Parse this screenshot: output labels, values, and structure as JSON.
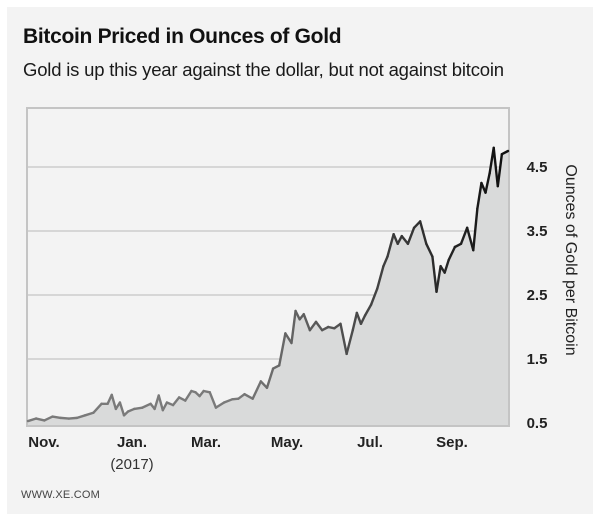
{
  "header": {
    "title": "Bitcoin Priced in Ounces of Gold",
    "subtitle": "Gold is up this year against the dollar, but not against bitcoin"
  },
  "footer": {
    "source": "WWW.XE.COM"
  },
  "colors": {
    "fill": "#d9dada",
    "line_early": "#7a7a7a",
    "line_late": "#111111",
    "grid": "#b9b9b9",
    "frame": "#c4c4c4"
  },
  "chart_data": {
    "type": "area",
    "title": "Bitcoin Priced in Ounces of Gold",
    "subtitle": "Gold is up this year against the dollar, but not against bitcoin",
    "xlabel": "",
    "ylabel": "Ounces of Gold per Bitcoin",
    "y_axis_position": "right",
    "ylim": [
      0.5,
      5.4
    ],
    "yticks": [
      0.5,
      1.5,
      2.5,
      3.5,
      4.5
    ],
    "ytick_labels": [
      "0.5",
      "1.5",
      "2.5",
      "3.5",
      "4.5"
    ],
    "xlim": [
      0,
      11.75
    ],
    "xticks": [
      0,
      2,
      4,
      6,
      8,
      10
    ],
    "xtick_labels": [
      "Nov.",
      "Jan.",
      "Mar.",
      "May.",
      "Jul.",
      "Sep."
    ],
    "xtick_sublabels": [
      "",
      "(2017)",
      "",
      "",
      "",
      ""
    ],
    "grid": true,
    "x_unit": "months since Nov. 1, 2016",
    "series": [
      {
        "name": "Ounces of Gold per Bitcoin",
        "x": [
          0,
          0.2,
          0.4,
          0.6,
          0.8,
          1.0,
          1.2,
          1.4,
          1.6,
          1.8,
          1.95,
          2.05,
          2.15,
          2.25,
          2.35,
          2.45,
          2.6,
          2.8,
          3.0,
          3.1,
          3.2,
          3.3,
          3.4,
          3.55,
          3.7,
          3.85,
          4.0,
          4.1,
          4.2,
          4.3,
          4.45,
          4.6,
          4.8,
          5.0,
          5.15,
          5.3,
          5.5,
          5.7,
          5.85,
          6.0,
          6.15,
          6.3,
          6.45,
          6.55,
          6.65,
          6.75,
          6.9,
          7.05,
          7.2,
          7.35,
          7.5,
          7.65,
          7.8,
          7.95,
          8.05,
          8.15,
          8.25,
          8.4,
          8.55,
          8.7,
          8.8,
          8.95,
          9.05,
          9.15,
          9.3,
          9.45,
          9.6,
          9.75,
          9.9,
          10.0,
          10.1,
          10.2,
          10.3,
          10.45,
          10.6,
          10.75,
          10.9,
          11.0,
          11.1,
          11.2,
          11.3,
          11.4,
          11.5,
          11.6,
          11.75
        ],
        "values": [
          0.53,
          0.57,
          0.54,
          0.6,
          0.58,
          0.57,
          0.58,
          0.62,
          0.66,
          0.8,
          0.8,
          0.94,
          0.72,
          0.82,
          0.62,
          0.68,
          0.72,
          0.74,
          0.8,
          0.72,
          0.93,
          0.7,
          0.82,
          0.78,
          0.9,
          0.85,
          1.0,
          0.98,
          0.92,
          1.0,
          0.98,
          0.74,
          0.82,
          0.87,
          0.88,
          0.95,
          0.88,
          1.15,
          1.05,
          1.35,
          1.4,
          1.9,
          1.75,
          2.25,
          2.12,
          2.2,
          1.95,
          2.08,
          1.95,
          2.0,
          1.98,
          2.05,
          1.58,
          1.95,
          2.22,
          2.05,
          2.18,
          2.35,
          2.6,
          2.95,
          3.1,
          3.45,
          3.3,
          3.42,
          3.3,
          3.55,
          3.65,
          3.3,
          3.1,
          2.55,
          2.95,
          2.85,
          3.05,
          3.25,
          3.3,
          3.55,
          3.2,
          3.85,
          4.25,
          4.1,
          4.4,
          4.8,
          4.2,
          4.7,
          4.75
        ]
      }
    ]
  }
}
